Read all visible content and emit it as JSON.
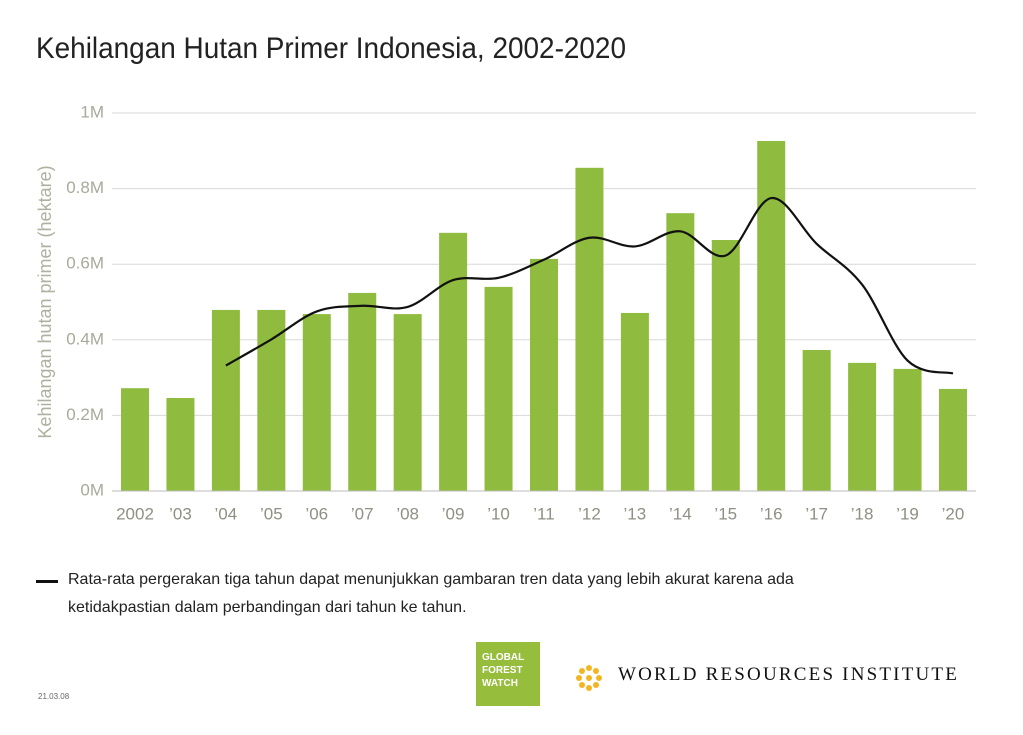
{
  "chart_data": {
    "type": "bar",
    "title": "Kehilangan Hutan Primer Indonesia, 2002-2020",
    "y_label": "Kehilangan hutan primer (hektare)",
    "categories": [
      "2002",
      "’03",
      "’04",
      "’05",
      "’06",
      "’07",
      "’08",
      "’09",
      "’10",
      "’11",
      "’12",
      "’13",
      "’14",
      "’15",
      "’16",
      "’17",
      "’18",
      "’19",
      "’20"
    ],
    "series": [
      {
        "type": "bar",
        "color": "#8fbc3f",
        "values": [
          272000,
          246000,
          479000,
          479000,
          468000,
          524000,
          468000,
          683000,
          540000,
          614000,
          855000,
          471000,
          735000,
          664000,
          926000,
          373000,
          339000,
          323000,
          270000
        ]
      },
      {
        "type": "line",
        "name": "Rata-rata pergerakan tiga tahun dapat menunjukkan gambaran tren data yang lebih akurat karena ada ketidakpastian dalam perbandingan dari tahun ke tahun.",
        "color": "#111111",
        "values": [
          null,
          null,
          332000,
          401000,
          475000,
          490000,
          487000,
          558000,
          564000,
          612000,
          670000,
          647000,
          687000,
          623000,
          775000,
          654000,
          546000,
          345000,
          311000
        ]
      }
    ],
    "ylim": [
      0,
      1000000
    ],
    "yticks": [
      {
        "value": 0,
        "label": "0M"
      },
      {
        "value": 200000,
        "label": "0.2M"
      },
      {
        "value": 400000,
        "label": "0.4M"
      },
      {
        "value": 600000,
        "label": "0.6M"
      },
      {
        "value": 800000,
        "label": "0.8M"
      },
      {
        "value": 1000000,
        "label": "1M"
      }
    ],
    "grid": true
  },
  "footer": {
    "gfw_logo": "GLOBAL\nFOREST\nWATCH",
    "wri_logo": "WORLD RESOURCES INSTITUTE",
    "date": "21.03.08"
  }
}
